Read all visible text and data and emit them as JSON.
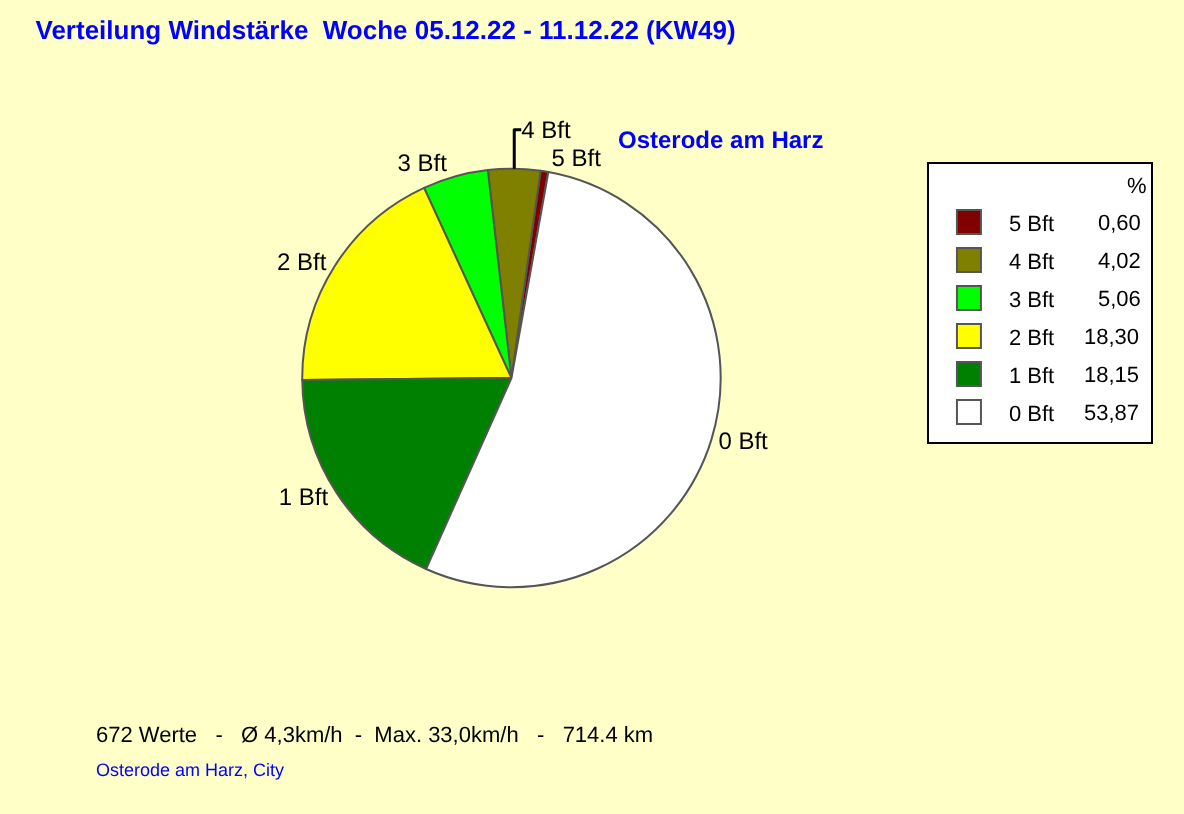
{
  "chart_data": {
    "type": "pie",
    "title": "Verteilung Windstärke  Woche 05.12.22 - 11.12.22 (KW49)",
    "subtitle": "Osterode am Harz",
    "legend_title": "%",
    "categories": [
      "5 Bft",
      "4 Bft",
      "3 Bft",
      "2 Bft",
      "1 Bft",
      "0 Bft"
    ],
    "values": [
      0.6,
      4.02,
      5.06,
      18.3,
      18.15,
      53.87
    ],
    "value_labels": [
      "0,60",
      "4,02",
      "5,06",
      "18,30",
      "18,15",
      "53,87"
    ],
    "colors": [
      "#800000",
      "#808000",
      "#00ff00",
      "#ffff00",
      "#008000",
      "#ffffff"
    ],
    "legend": "top right",
    "annotations": [
      "672 Werte   -   Ø 4,3km/h  -  Max. 33,0km/h   -   714.4 km",
      "Osterode am Harz, City"
    ]
  }
}
